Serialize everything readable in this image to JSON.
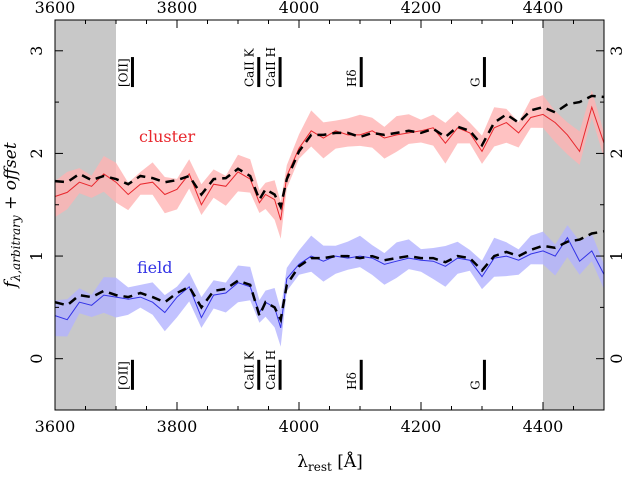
{
  "chart_data": {
    "type": "line",
    "xlabel": "λrest [Å]",
    "xlabel_main": "λ",
    "xlabel_sub": "rest",
    "xlabel_unit": "[Å]",
    "ylabel_main": "f",
    "ylabel_sub": "λ,arbitrary",
    "ylabel_rest": " + offset",
    "xlim": [
      3600,
      4500
    ],
    "ylim": [
      -0.5,
      3.3
    ],
    "x_ticks": [
      3600,
      3800,
      4000,
      4200,
      4400
    ],
    "y_ticks": [
      0,
      1,
      2,
      3
    ],
    "x_tick_labels": [
      "3600",
      "3800",
      "4000",
      "4200",
      "4400"
    ],
    "y_tick_labels": [
      "0",
      "1",
      "2",
      "3"
    ],
    "masked_regions": [
      [
        3600,
        3700
      ],
      [
        4400,
        4500
      ]
    ],
    "spectral_lines": [
      {
        "label": "[OII]",
        "x": 3727
      },
      {
        "label": "CaII K",
        "x": 3934
      },
      {
        "label": "CaII H",
        "x": 3969
      },
      {
        "label": "Hδ",
        "x": 4102
      },
      {
        "label": "G",
        "x": 4304
      }
    ],
    "line_marker_rows": [
      2.9,
      -0.05
    ],
    "series": [
      {
        "name": "cluster",
        "color": "#e8272d",
        "band_color": "#ffb3b3",
        "observed": {
          "x": [
            3600,
            3620,
            3640,
            3660,
            3680,
            3700,
            3720,
            3740,
            3760,
            3780,
            3800,
            3820,
            3840,
            3860,
            3880,
            3900,
            3920,
            3935,
            3945,
            3960,
            3970,
            3980,
            4000,
            4020,
            4040,
            4060,
            4080,
            4100,
            4120,
            4140,
            4160,
            4180,
            4200,
            4220,
            4240,
            4260,
            4280,
            4300,
            4320,
            4340,
            4360,
            4380,
            4400,
            4420,
            4440,
            4460,
            4480,
            4500
          ],
          "y": [
            1.58,
            1.62,
            1.72,
            1.68,
            1.8,
            1.72,
            1.6,
            1.7,
            1.72,
            1.6,
            1.65,
            1.8,
            1.5,
            1.7,
            1.68,
            1.82,
            1.75,
            1.52,
            1.6,
            1.55,
            1.35,
            1.78,
            2.05,
            2.22,
            2.15,
            2.22,
            2.18,
            2.18,
            2.22,
            2.15,
            2.18,
            2.2,
            2.22,
            2.25,
            2.1,
            2.25,
            2.2,
            2.02,
            2.25,
            2.3,
            2.2,
            2.35,
            2.38,
            2.3,
            2.18,
            2.02,
            2.45,
            2.1
          ]
        },
        "model": {
          "x": [
            3600,
            3620,
            3640,
            3660,
            3680,
            3700,
            3720,
            3740,
            3760,
            3780,
            3800,
            3820,
            3840,
            3860,
            3880,
            3900,
            3920,
            3935,
            3945,
            3960,
            3970,
            3980,
            4000,
            4020,
            4040,
            4060,
            4080,
            4100,
            4120,
            4140,
            4160,
            4180,
            4200,
            4220,
            4240,
            4260,
            4280,
            4300,
            4320,
            4340,
            4360,
            4380,
            4400,
            4420,
            4440,
            4460,
            4480,
            4500
          ],
          "y": [
            1.73,
            1.72,
            1.8,
            1.74,
            1.78,
            1.75,
            1.7,
            1.78,
            1.76,
            1.72,
            1.74,
            1.78,
            1.6,
            1.75,
            1.76,
            1.85,
            1.78,
            1.55,
            1.65,
            1.6,
            1.48,
            1.75,
            2.02,
            2.18,
            2.18,
            2.2,
            2.2,
            2.16,
            2.2,
            2.18,
            2.2,
            2.22,
            2.2,
            2.24,
            2.16,
            2.26,
            2.22,
            2.08,
            2.3,
            2.38,
            2.3,
            2.42,
            2.45,
            2.4,
            2.48,
            2.5,
            2.56,
            2.55
          ]
        }
      },
      {
        "name": "field",
        "color": "#3333e6",
        "band_color": "#b3b3ff",
        "observed": {
          "x": [
            3600,
            3620,
            3640,
            3660,
            3680,
            3700,
            3720,
            3740,
            3760,
            3780,
            3800,
            3820,
            3840,
            3860,
            3880,
            3900,
            3920,
            3935,
            3945,
            3960,
            3970,
            3980,
            4000,
            4020,
            4040,
            4060,
            4080,
            4100,
            4120,
            4140,
            4160,
            4180,
            4200,
            4220,
            4240,
            4260,
            4280,
            4300,
            4320,
            4340,
            4360,
            4380,
            4400,
            4420,
            4440,
            4460,
            4480,
            4500
          ],
          "y": [
            0.42,
            0.38,
            0.55,
            0.52,
            0.62,
            0.6,
            0.58,
            0.6,
            0.55,
            0.45,
            0.6,
            0.7,
            0.4,
            0.62,
            0.64,
            0.74,
            0.7,
            0.45,
            0.55,
            0.5,
            0.3,
            0.78,
            0.92,
            1.0,
            0.95,
            1.0,
            0.98,
            1.0,
            0.98,
            0.92,
            0.95,
            0.98,
            0.96,
            0.95,
            0.9,
            0.98,
            0.96,
            0.8,
            0.98,
            1.0,
            0.96,
            1.02,
            1.05,
            1.0,
            1.18,
            0.95,
            1.05,
            0.82
          ]
        },
        "model": {
          "x": [
            3600,
            3620,
            3640,
            3660,
            3680,
            3700,
            3720,
            3740,
            3760,
            3780,
            3800,
            3820,
            3840,
            3860,
            3880,
            3900,
            3920,
            3935,
            3945,
            3960,
            3970,
            3980,
            4000,
            4020,
            4040,
            4060,
            4080,
            4100,
            4120,
            4140,
            4160,
            4180,
            4200,
            4220,
            4240,
            4260,
            4280,
            4300,
            4320,
            4340,
            4360,
            4380,
            4400,
            4420,
            4440,
            4460,
            4480,
            4500
          ],
          "y": [
            0.55,
            0.52,
            0.62,
            0.6,
            0.66,
            0.62,
            0.6,
            0.64,
            0.6,
            0.55,
            0.64,
            0.7,
            0.5,
            0.66,
            0.68,
            0.76,
            0.72,
            0.42,
            0.55,
            0.5,
            0.38,
            0.72,
            0.9,
            0.98,
            0.98,
            1.0,
            1.0,
            0.98,
            1.0,
            0.96,
            0.98,
            1.0,
            0.98,
            0.98,
            0.94,
            1.0,
            0.98,
            0.86,
            1.0,
            1.04,
            1.0,
            1.06,
            1.1,
            1.08,
            1.14,
            1.16,
            1.22,
            1.24
          ]
        }
      }
    ]
  }
}
